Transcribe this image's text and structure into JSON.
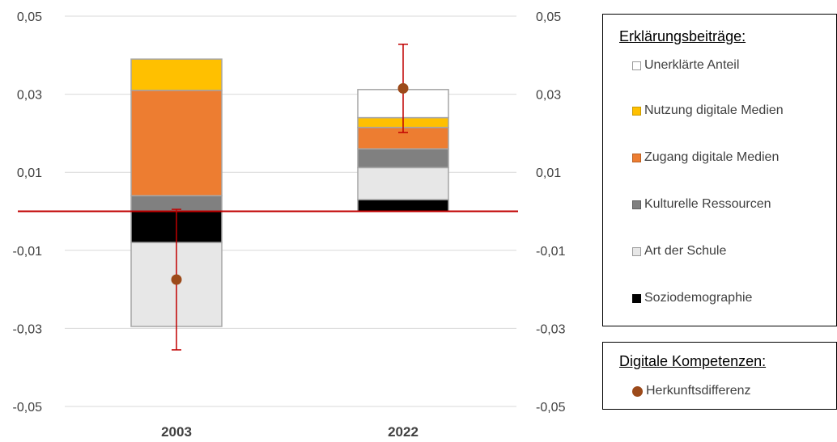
{
  "chart_data": {
    "type": "stacked-bar-with-errorbars",
    "categories": [
      "2003",
      "2022"
    ],
    "y_axis_left": {
      "ticks": [
        "0,05",
        "0,03",
        "0,01",
        "-0,01",
        "-0,03",
        "-0,05"
      ],
      "ylim": [
        -0.05,
        0.05
      ]
    },
    "y_axis_right": {
      "ticks": [
        "0,05",
        "0,03",
        "0,01",
        "-0,01",
        "-0,03",
        "-0,05"
      ]
    },
    "grid": true,
    "zero_line_color": "#c00000",
    "series": [
      {
        "name": "Soziodemographie",
        "color": "#000000",
        "values": [
          -0.008,
          0.003
        ]
      },
      {
        "name": "Art der Schule",
        "color": "#e7e7e7",
        "values": [
          -0.0215,
          0.0082
        ]
      },
      {
        "name": "Kulturelle Ressourcen",
        "color": "#808080",
        "values": [
          0.004,
          0.0048
        ]
      },
      {
        "name": "Zugang digitale Medien",
        "color": "#ed7d31",
        "values": [
          0.027,
          0.0055
        ]
      },
      {
        "name": "Nutzung digitale Medien",
        "color": "#ffc000",
        "values": [
          0.008,
          0.0025
        ]
      },
      {
        "name": "Unerklärte Anteil",
        "color": "#ffffff",
        "values": [
          0,
          0.0072
        ]
      }
    ],
    "herkunftsdifferenz": {
      "name": "Herkunftsdifferenz",
      "color": "#9c4a1a",
      "values": [
        -0.0175,
        0.0315
      ],
      "ci_low": [
        -0.0355,
        0.0202
      ],
      "ci_high": [
        0.0005,
        0.0428
      ]
    }
  },
  "legend": {
    "contrib_title": "Erklärungsbeiträge:",
    "contrib_items": [
      {
        "label": "Unerklärte Anteil",
        "color": "#ffffff"
      },
      {
        "label": "Nutzung digitale Medien",
        "color": "#ffc000"
      },
      {
        "label": "Zugang digitale Medien",
        "color": "#ed7d31"
      },
      {
        "label": "Kulturelle Ressourcen",
        "color": "#808080"
      },
      {
        "label": "Art der Schule",
        "color": "#e7e7e7"
      },
      {
        "label": "Soziodemographie",
        "color": "#000000"
      }
    ],
    "skills_title": "Digitale Kompetenzen:",
    "skills_item": "Herkunftsdifferenz"
  }
}
